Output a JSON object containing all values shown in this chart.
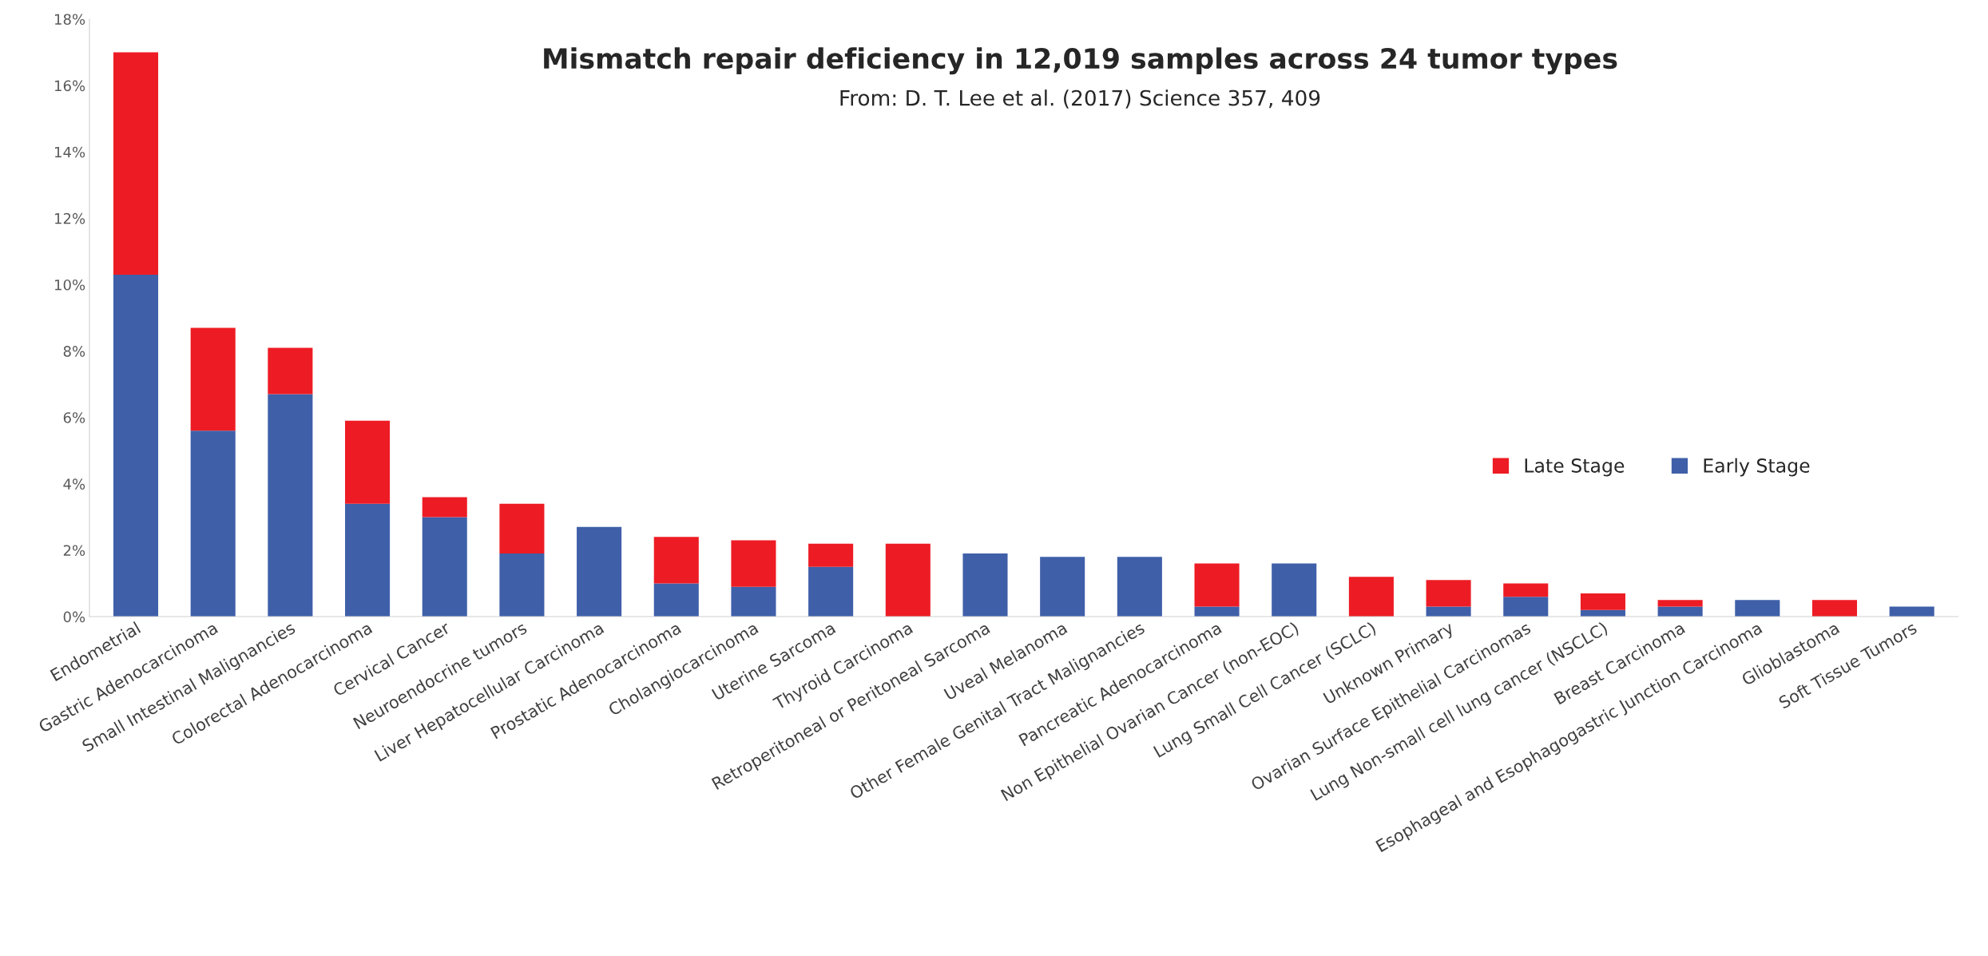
{
  "chart_data": {
    "type": "bar",
    "stacked": true,
    "title": "Mismatch repair deficiency in 12,019 samples across 24 tumor types",
    "subtitle": "From: D. T. Lee et al. (2017) Science 357, 409",
    "categories": [
      "Endometrial",
      "Gastric Adenocarcinoma",
      "Small Intestinal Malignancies",
      "Colorectal Adenocarcinoma",
      "Cervical Cancer",
      "Neuroendocrine tumors",
      "Liver Hepatocellular Carcinoma",
      "Prostatic Adenocarcinoma",
      "Cholangiocarcinoma",
      "Uterine Sarcoma",
      "Thyroid Carcinoma",
      "Retroperitoneal or Peritoneal Sarcoma",
      "Uveal Melanoma",
      "Other Female Genital Tract Malignancies",
      "Pancreatic Adenocarcinoma",
      "Non Epithelial Ovarian Cancer (non-EOC)",
      "Lung Small Cell Cancer (SCLC)",
      "Unknown Primary",
      "Ovarian Surface Epithelial Carcinomas",
      "Lung Non-small cell lung cancer (NSCLC)",
      "Breast Carcinoma",
      "Esophageal and Esophagogastric Junction Carcinoma",
      "Glioblastoma",
      "Soft Tissue Tumors"
    ],
    "series": [
      {
        "name": "Early Stage",
        "color": "#3f5fa9",
        "values": [
          10.3,
          5.6,
          6.7,
          3.4,
          3.0,
          1.9,
          2.7,
          1.0,
          0.9,
          1.5,
          0,
          1.9,
          1.8,
          1.8,
          0.3,
          1.6,
          0,
          0.3,
          0.6,
          0.2,
          0.3,
          0.5,
          0,
          0.3
        ]
      },
      {
        "name": "Late Stage",
        "color": "#ed1c24",
        "values": [
          6.7,
          3.1,
          1.4,
          2.5,
          0.6,
          1.5,
          0,
          1.4,
          1.4,
          0.7,
          2.2,
          0,
          0,
          0,
          1.3,
          0,
          1.2,
          0.8,
          0.4,
          0.5,
          0.2,
          0,
          0.5,
          0
        ]
      }
    ],
    "ylim": [
      0,
      18
    ],
    "yticks": [
      {
        "value": 0,
        "label": "0%"
      },
      {
        "value": 2,
        "label": "2%"
      },
      {
        "value": 4,
        "label": "4%"
      },
      {
        "value": 6,
        "label": "6%"
      },
      {
        "value": 8,
        "label": "8%"
      },
      {
        "value": 10,
        "label": "10%"
      },
      {
        "value": 12,
        "label": "12%"
      },
      {
        "value": 14,
        "label": "14%"
      },
      {
        "value": 16,
        "label": "16%"
      },
      {
        "value": 18,
        "label": "18%"
      }
    ],
    "legend": "right"
  }
}
